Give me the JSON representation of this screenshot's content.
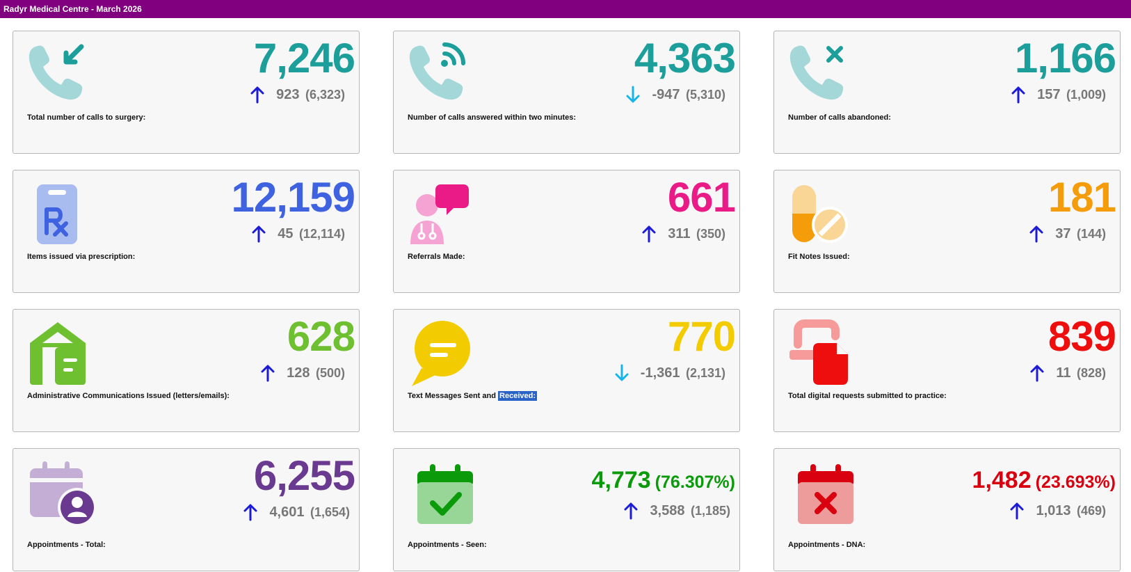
{
  "header": {
    "title": "Radyr Medical Centre - March 2026"
  },
  "colors": {
    "header_bg": "#800080",
    "teal": "#1c9e9b",
    "blue": "#3f62e0",
    "pink": "#ea1b87",
    "orange": "#f59c0a",
    "green": "#6fc030",
    "yellow": "#f2cc00",
    "red": "#ee0e0e",
    "purple": "#6a3a90",
    "dark_green": "#0a9a0a",
    "dark_red": "#d9000f",
    "arrow_up": "#1c1cd6",
    "arrow_down": "#18b6e8"
  },
  "cards": [
    {
      "label": "Total number of calls to surgery:",
      "value": "7,246",
      "change": "923",
      "previous": "(6,323)",
      "trend": "up",
      "icon": "phone-incoming-icon"
    },
    {
      "label": "Number of calls answered within two minutes:",
      "value": "4,363",
      "change": "-947",
      "previous": "(5,310)",
      "trend": "down",
      "icon": "phone-wifi-icon"
    },
    {
      "label": "Number of calls abandoned:",
      "value": "1,166",
      "change": "157",
      "previous": "(1,009)",
      "trend": "up",
      "icon": "phone-missed-icon"
    },
    {
      "label": "Items issued via prescription:",
      "value": "12,159",
      "change": "45",
      "previous": "(12,114)",
      "trend": "up",
      "icon": "prescription-clipboard-icon"
    },
    {
      "label": "Referrals Made:",
      "value": "661",
      "change": "311",
      "previous": "(350)",
      "trend": "up",
      "icon": "doctor-chat-icon"
    },
    {
      "label": "Fit Notes Issued:",
      "value": "181",
      "change": "37",
      "previous": "(144)",
      "trend": "up",
      "icon": "pills-icon"
    },
    {
      "label": "Administrative Communications Issued (letters/emails):",
      "value": "628",
      "change": "128",
      "previous": "(500)",
      "trend": "up",
      "icon": "house-mail-icon"
    },
    {
      "label_start": "Text Messages Sent and ",
      "label_selected": "Received:",
      "value": "770",
      "change": "-1,361",
      "previous": "(2,131)",
      "trend": "down",
      "icon": "speech-bubble-icon"
    },
    {
      "label": "Total digital requests submitted to practice:",
      "value": "839",
      "change": "11",
      "previous": "(828)",
      "trend": "up",
      "icon": "device-document-icon"
    },
    {
      "label": "Appointments - Total:",
      "value": "6,255",
      "change": "4,601",
      "previous": "(1,654)",
      "trend": "up",
      "icon": "calendar-user-icon"
    },
    {
      "label": "Appointments - Seen:",
      "value": "4,773",
      "percent": "(76.307%)",
      "change": "3,588",
      "previous": "(1,185)",
      "trend": "up",
      "icon": "calendar-check-icon"
    },
    {
      "label": "Appointments - DNA:",
      "value": "1,482",
      "percent": "(23.693%)",
      "change": "1,013",
      "previous": "(469)",
      "trend": "up",
      "icon": "calendar-x-icon"
    }
  ]
}
